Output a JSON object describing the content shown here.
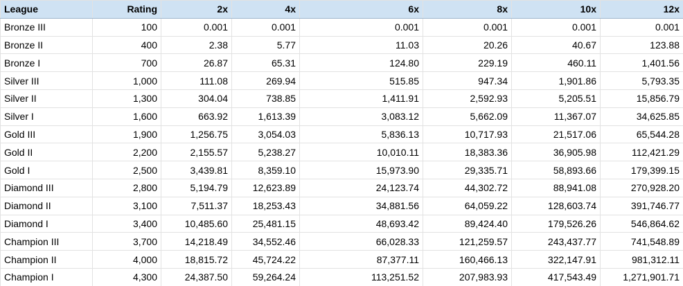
{
  "table": {
    "header": [
      "League",
      "Rating",
      "2x",
      "4x",
      "6x",
      "8x",
      "10x",
      "12x"
    ],
    "rows": [
      [
        "Bronze III",
        "100",
        "0.001",
        "0.001",
        "0.001",
        "0.001",
        "0.001",
        "0.001"
      ],
      [
        "Bronze II",
        "400",
        "2.38",
        "5.77",
        "11.03",
        "20.26",
        "40.67",
        "123.88"
      ],
      [
        "Bronze I",
        "700",
        "26.87",
        "65.31",
        "124.80",
        "229.19",
        "460.11",
        "1,401.56"
      ],
      [
        "Silver III",
        "1,000",
        "111.08",
        "269.94",
        "515.85",
        "947.34",
        "1,901.86",
        "5,793.35"
      ],
      [
        "Silver II",
        "1,300",
        "304.04",
        "738.85",
        "1,411.91",
        "2,592.93",
        "5,205.51",
        "15,856.79"
      ],
      [
        "Silver I",
        "1,600",
        "663.92",
        "1,613.39",
        "3,083.12",
        "5,662.09",
        "11,367.07",
        "34,625.85"
      ],
      [
        "Gold III",
        "1,900",
        "1,256.75",
        "3,054.03",
        "5,836.13",
        "10,717.93",
        "21,517.06",
        "65,544.28"
      ],
      [
        "Gold II",
        "2,200",
        "2,155.57",
        "5,238.27",
        "10,010.11",
        "18,383.36",
        "36,905.98",
        "112,421.29"
      ],
      [
        "Gold I",
        "2,500",
        "3,439.81",
        "8,359.10",
        "15,973.90",
        "29,335.71",
        "58,893.66",
        "179,399.15"
      ],
      [
        "Diamond III",
        "2,800",
        "5,194.79",
        "12,623.89",
        "24,123.74",
        "44,302.72",
        "88,941.08",
        "270,928.20"
      ],
      [
        "Diamond II",
        "3,100",
        "7,511.37",
        "18,253.43",
        "34,881.56",
        "64,059.22",
        "128,603.74",
        "391,746.77"
      ],
      [
        "Diamond I",
        "3,400",
        "10,485.60",
        "25,481.15",
        "48,693.42",
        "89,424.40",
        "179,526.26",
        "546,864.62"
      ],
      [
        "Champion III",
        "3,700",
        "14,218.49",
        "34,552.46",
        "66,028.33",
        "121,259.57",
        "243,437.77",
        "741,548.89"
      ],
      [
        "Champion II",
        "4,000",
        "18,815.72",
        "45,724.22",
        "87,377.11",
        "160,466.13",
        "322,147.91",
        "981,312.11"
      ],
      [
        "Champion I",
        "4,300",
        "24,387.50",
        "59,264.24",
        "113,251.52",
        "207,983.93",
        "417,543.49",
        "1,271,901.71"
      ]
    ]
  }
}
